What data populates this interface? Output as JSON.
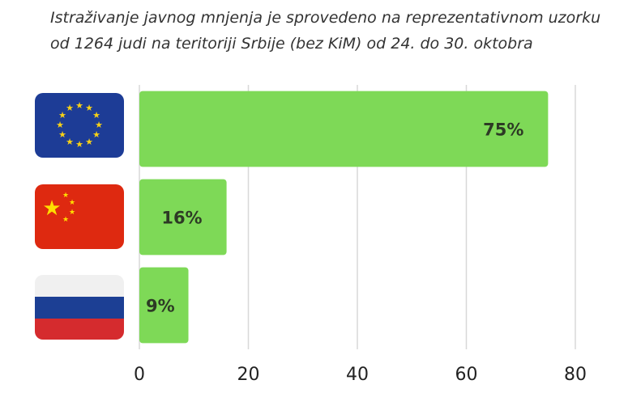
{
  "chart_data": {
    "type": "hbar",
    "title": [
      "Istraživanje javnog mnjenja je sprovedeno na reprezentativnom uzorku",
      "od 1264 judi na teritoriji Srbije (bez KiM) od 24. do 30. oktobra"
    ],
    "categories": [
      null,
      null,
      null
    ],
    "values": [
      75,
      16,
      9
    ],
    "value_labels": [
      "75%",
      "16%",
      "9%"
    ],
    "color": "#7ed957",
    "xlim": [
      0,
      80
    ],
    "xticks": [
      0,
      20,
      40,
      60,
      80
    ],
    "grid": true
  }
}
